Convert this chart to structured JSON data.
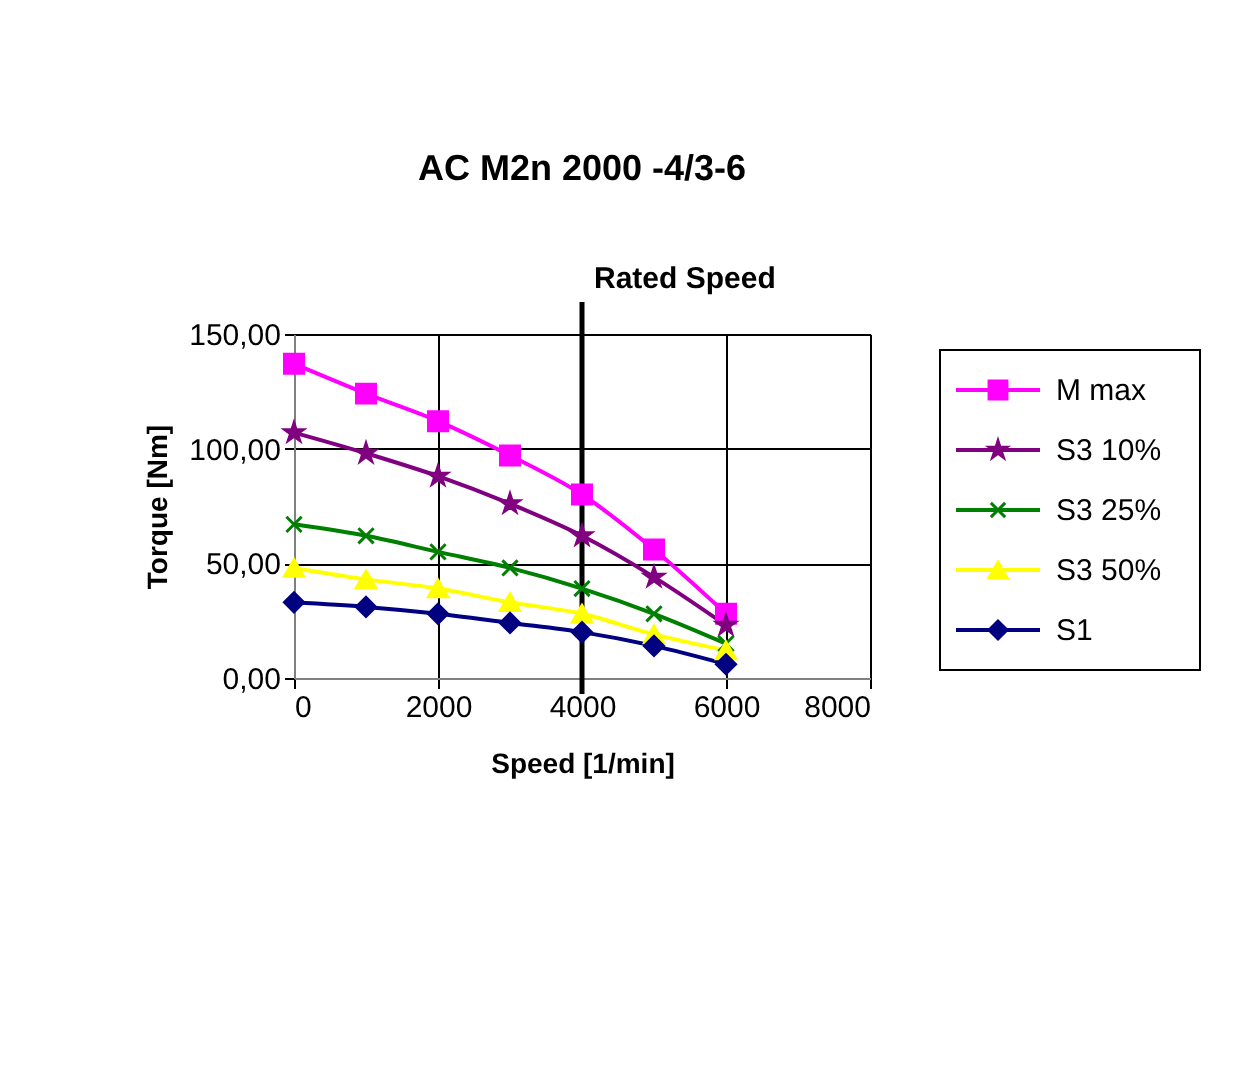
{
  "chart_data": {
    "type": "line",
    "title": "AC M2n 2000 -4/3-6",
    "xlabel": "Speed [1/min]",
    "ylabel": "Torque [Nm]",
    "x": [
      0,
      1000,
      2000,
      3000,
      4000,
      5000,
      6000
    ],
    "series": [
      {
        "name": "M max",
        "color": "#ff00ff",
        "marker": "square",
        "values": [
          137,
          124,
          112,
          97,
          80,
          56,
          28
        ]
      },
      {
        "name": "S3 10%",
        "color": "#800080",
        "marker": "star",
        "values": [
          107,
          98,
          88,
          76,
          62,
          44,
          23
        ]
      },
      {
        "name": "S3 25%",
        "color": "#008000",
        "marker": "cross",
        "values": [
          67,
          62,
          55,
          48,
          39,
          28,
          15
        ]
      },
      {
        "name": "S3 50%",
        "color": "#ffff00",
        "marker": "triangle",
        "values": [
          48,
          43,
          39,
          33,
          28,
          19,
          12
        ]
      },
      {
        "name": "S1",
        "color": "#000080",
        "marker": "diamond",
        "values": [
          33,
          31,
          28,
          24,
          20,
          14,
          6
        ]
      }
    ],
    "xlim": [
      0,
      8000
    ],
    "xticks": [
      0,
      2000,
      4000,
      6000,
      8000
    ],
    "ylim": [
      0,
      150
    ],
    "yticks": [
      {
        "value": 0,
        "label": "0,00"
      },
      {
        "value": 50,
        "label": "50,00"
      },
      {
        "value": 100,
        "label": "100,00"
      },
      {
        "value": 150,
        "label": "150,00"
      }
    ],
    "ref_lines": [
      {
        "axis": "x",
        "value": 4000,
        "label": "Rated Speed",
        "color": "#000000"
      }
    ],
    "grid": true,
    "legend": "right",
    "line_style": "solid"
  }
}
